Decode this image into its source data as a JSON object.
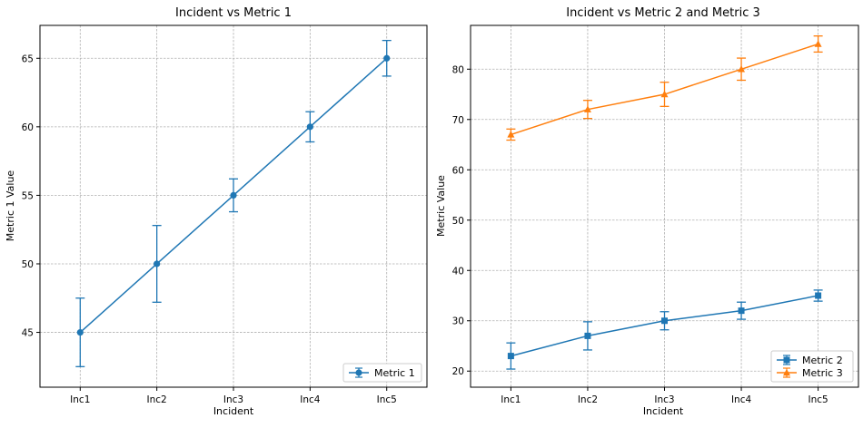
{
  "chart_data": [
    {
      "type": "line",
      "title": "Incident vs Metric 1",
      "xlabel": "Incident",
      "ylabel": "Metric 1 Value",
      "categories": [
        "Inc1",
        "Inc2",
        "Inc3",
        "Inc4",
        "Inc5"
      ],
      "ylim": [
        41.0,
        67.4
      ],
      "yticks": [
        45,
        50,
        55,
        60,
        65
      ],
      "grid": true,
      "legend": "lower-right",
      "series": [
        {
          "name": "Metric 1",
          "values": [
            45,
            50,
            55,
            60,
            65
          ],
          "errors": [
            2.5,
            2.8,
            1.2,
            1.1,
            1.3
          ],
          "color": "#1f77b4",
          "marker": "circle"
        }
      ]
    },
    {
      "type": "line",
      "title": "Incident vs Metric 2 and Metric 3",
      "xlabel": "Incident",
      "ylabel": "Metric Value",
      "categories": [
        "Inc1",
        "Inc2",
        "Inc3",
        "Inc4",
        "Inc5"
      ],
      "ylim": [
        16.8,
        88.7
      ],
      "yticks": [
        20,
        30,
        40,
        50,
        60,
        70,
        80
      ],
      "grid": true,
      "legend": "lower-right",
      "series": [
        {
          "name": "Metric 2",
          "values": [
            23,
            27,
            30,
            32,
            35
          ],
          "errors": [
            2.6,
            2.8,
            1.8,
            1.7,
            1.1
          ],
          "color": "#1f77b4",
          "marker": "square"
        },
        {
          "name": "Metric 3",
          "values": [
            67,
            72,
            75,
            80,
            85
          ],
          "errors": [
            1.1,
            1.8,
            2.4,
            2.2,
            1.6
          ],
          "color": "#ff7f0e",
          "marker": "triangle"
        }
      ]
    }
  ]
}
